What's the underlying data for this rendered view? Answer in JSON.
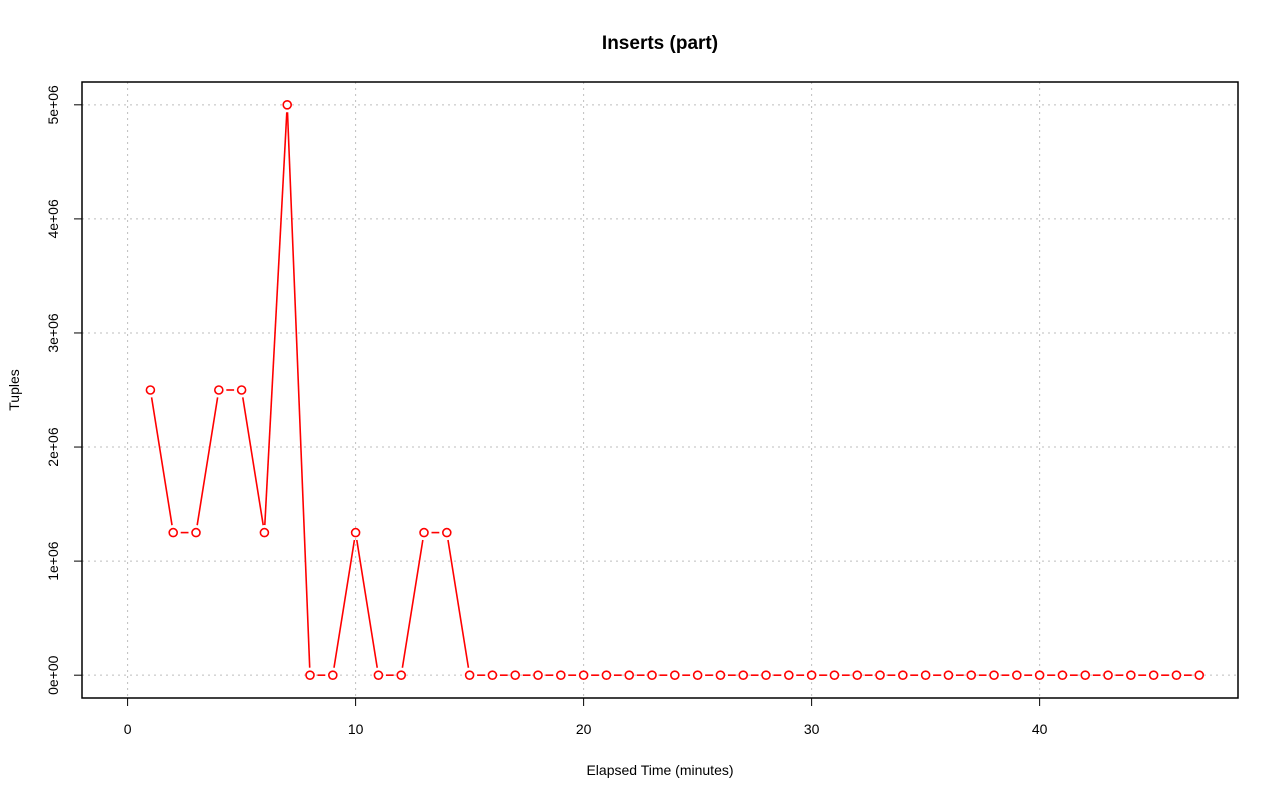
{
  "chart_data": {
    "type": "line",
    "title": "Inserts (part)",
    "xlabel": "Elapsed Time (minutes)",
    "ylabel": "Tuples",
    "xlim": [
      -2,
      48.7
    ],
    "ylim": [
      -200000,
      5200000
    ],
    "x_ticks": [
      0,
      10,
      20,
      30,
      40
    ],
    "x_tick_labels": [
      "0",
      "10",
      "20",
      "30",
      "40"
    ],
    "y_ticks": [
      0,
      1000000,
      2000000,
      3000000,
      4000000,
      5000000
    ],
    "y_tick_labels": [
      "0e+00",
      "1e+06",
      "2e+06",
      "3e+06",
      "4e+06",
      "5e+06"
    ],
    "grid": true,
    "series_color": "#ff0000",
    "grid_color": "#bebebe",
    "series": [
      {
        "x": [
          1,
          2,
          3,
          4,
          5,
          6,
          7,
          8,
          9,
          10,
          11,
          12,
          13,
          14,
          15,
          16,
          17,
          18,
          19,
          20,
          21,
          22,
          23,
          24,
          25,
          26,
          27,
          28,
          29,
          30,
          31,
          32,
          33,
          34,
          35,
          36,
          37,
          38,
          39,
          40,
          41,
          42,
          43,
          44,
          45,
          46,
          47
        ],
        "values": [
          2500000,
          1250000,
          1250000,
          2500000,
          2500000,
          1250000,
          5000000,
          0,
          0,
          1250000,
          0,
          0,
          1250000,
          1250000,
          0,
          0,
          0,
          0,
          0,
          0,
          0,
          0,
          0,
          0,
          0,
          0,
          0,
          0,
          0,
          0,
          0,
          0,
          0,
          0,
          0,
          0,
          0,
          0,
          0,
          0,
          0,
          0,
          0,
          0,
          0,
          0,
          0
        ]
      }
    ]
  }
}
